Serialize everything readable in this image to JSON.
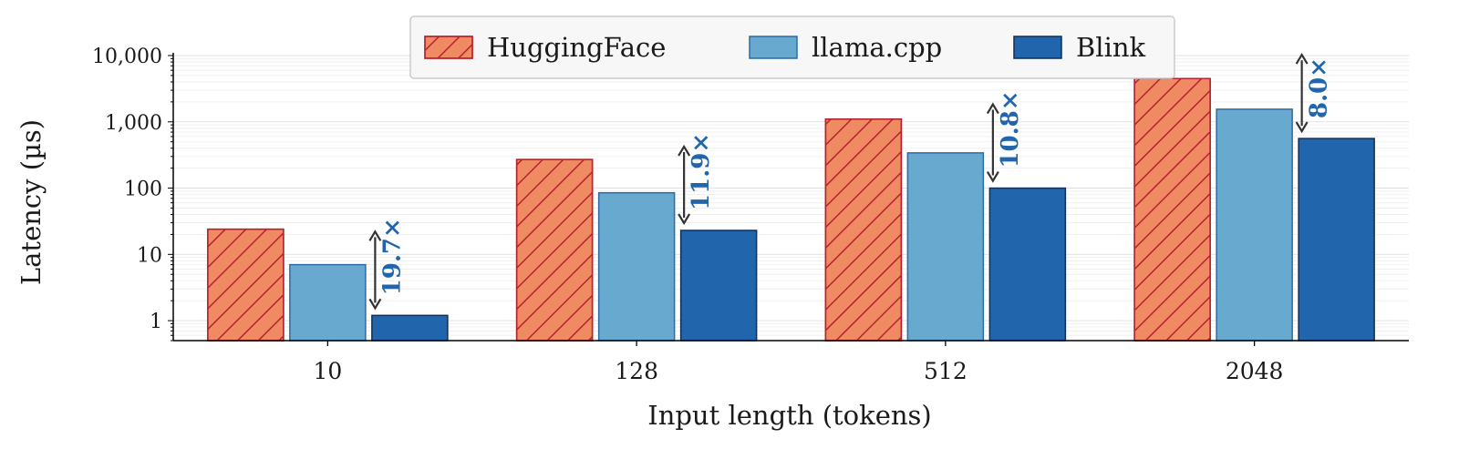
{
  "chart_data": {
    "type": "bar",
    "title": "",
    "xlabel": "Input length (tokens)",
    "ylabel": "Latency (µs)",
    "yscale": "log",
    "ylim": [
      0.5,
      11000
    ],
    "yticks": [
      1,
      10,
      100,
      1000,
      10000
    ],
    "ytick_labels": [
      "1",
      "10",
      "100",
      "1,000",
      "10,000"
    ],
    "categories": [
      "10",
      "128",
      "512",
      "2048"
    ],
    "series": [
      {
        "name": "HuggingFace",
        "values": [
          24,
          270,
          1100,
          4500
        ],
        "color": "#f08a62",
        "edge": "#b5232f",
        "hatch": true
      },
      {
        "name": "llama.cpp",
        "values": [
          7,
          85,
          340,
          1550
        ],
        "color": "#67a9cf",
        "edge": "#2e6aa6",
        "hatch": false
      },
      {
        "name": "Blink",
        "values": [
          1.2,
          23,
          100,
          560
        ],
        "color": "#2166ac",
        "edge": "#0d2f5a",
        "hatch": false
      }
    ],
    "speedups": [
      "19.7×",
      "11.9×",
      "10.8×",
      "8.0×"
    ],
    "speedup_color": "#2166ac",
    "grid": "horizontal-minor",
    "legend": "top-center"
  }
}
